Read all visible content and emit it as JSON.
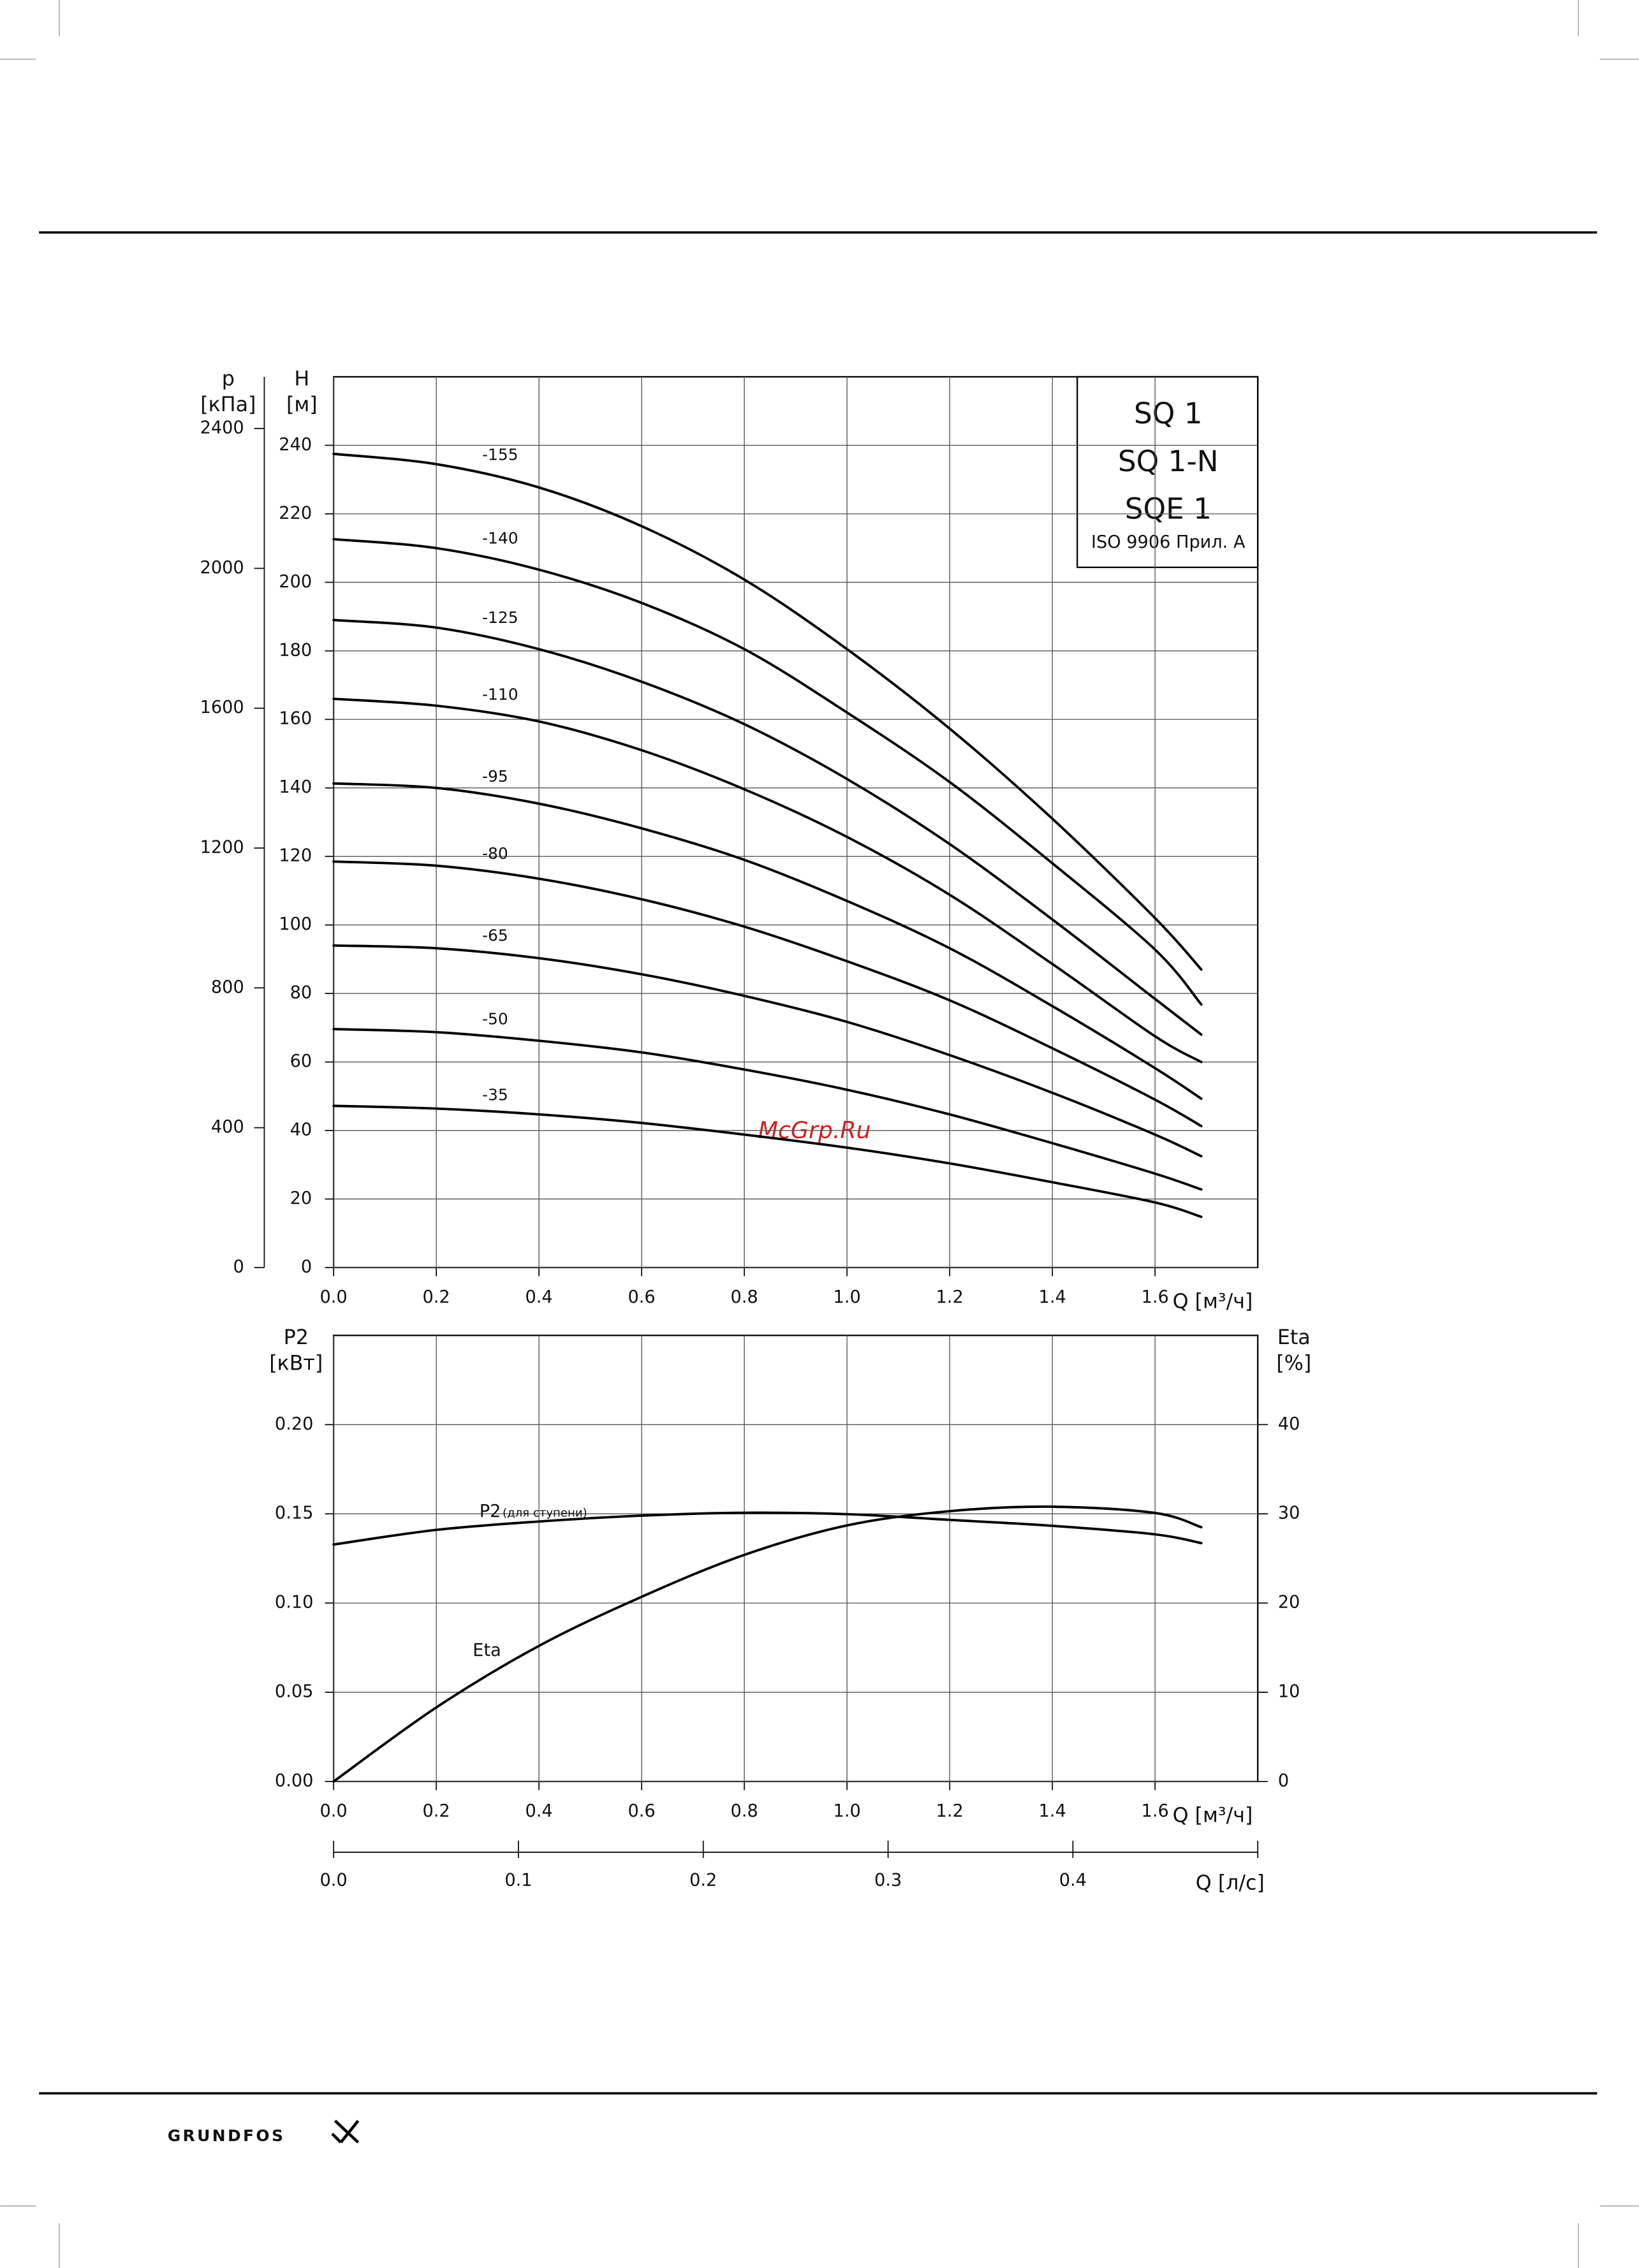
{
  "chart_data": [
    {
      "type": "line",
      "x_label": "Q [м³/ч]",
      "y_label": [
        "H",
        "[м]"
      ],
      "y2_label": [
        "p",
        "[кПа]"
      ],
      "x": [
        0,
        0.2,
        0.4,
        0.6,
        0.8,
        1.0,
        1.2,
        1.4,
        1.6,
        1.69
      ],
      "xlim": [
        0,
        1.8
      ],
      "xticks": [
        {
          "value": 0,
          "label": "0.0"
        },
        0.2,
        0.4,
        0.6,
        0.8,
        {
          "value": 1,
          "label": "1.0"
        },
        1.2,
        1.4,
        1.6
      ],
      "ylim": [
        0,
        260
      ],
      "yticks": [
        0,
        20,
        40,
        60,
        80,
        100,
        120,
        140,
        160,
        180,
        200,
        220,
        240
      ],
      "y2lim": [
        0,
        2548
      ],
      "y2ticks": [
        0,
        400,
        800,
        1200,
        1600,
        2000,
        2400
      ],
      "grid": true,
      "color": "#000000",
      "series": [
        {
          "name": "-155",
          "values": [
            237.5,
            234.5,
            227.7,
            216.4,
            200.8,
            180.5,
            157.3,
            131.0,
            102.0,
            87.0
          ]
        },
        {
          "name": "-140",
          "values": [
            212.6,
            210.0,
            203.7,
            194.0,
            180.5,
            162.0,
            141.7,
            118.0,
            92.8,
            76.8
          ]
        },
        {
          "name": "-125",
          "values": [
            189.0,
            186.8,
            180.5,
            171.0,
            158.6,
            142.6,
            123.6,
            101.6,
            78.4,
            68.0
          ]
        },
        {
          "name": "-110",
          "values": [
            166.0,
            164.0,
            159.4,
            151.0,
            139.6,
            125.7,
            108.8,
            88.6,
            67.5,
            60.0
          ]
        },
        {
          "name": "-95",
          "values": [
            141.3,
            140.0,
            135.4,
            128.2,
            119.0,
            107.0,
            93.2,
            76.3,
            58.2,
            49.3
          ]
        },
        {
          "name": "-80",
          "values": [
            118.5,
            117.3,
            113.5,
            107.5,
            99.5,
            89.4,
            78.0,
            64.0,
            49.0,
            41.3
          ]
        },
        {
          "name": "-65",
          "values": [
            94.0,
            93.2,
            90.3,
            85.6,
            79.3,
            71.7,
            62.0,
            51.0,
            38.8,
            32.5
          ]
        },
        {
          "name": "-50",
          "values": [
            69.6,
            68.7,
            66.2,
            62.8,
            57.8,
            51.9,
            44.7,
            36.3,
            27.4,
            22.8
          ]
        },
        {
          "name": "-35",
          "values": [
            47.2,
            46.4,
            44.7,
            42.2,
            38.8,
            35.0,
            30.4,
            24.9,
            19.0,
            14.8
          ]
        }
      ],
      "annotations": [
        "SQ 1",
        "SQ 1-N",
        "SQE 1",
        "ISO 9906 Прил.  A"
      ]
    },
    {
      "type": "line",
      "x_label": "Q [м³/ч]",
      "y_label": [
        "P2",
        "[кВт]"
      ],
      "y2_label": [
        "Eta",
        "[%]"
      ],
      "x": [
        0,
        0.2,
        0.4,
        0.6,
        0.8,
        1.0,
        1.2,
        1.4,
        1.6,
        1.69
      ],
      "xlim": [
        0,
        1.8
      ],
      "xticks": [
        {
          "value": 0,
          "label": "0.0"
        },
        0.2,
        0.4,
        0.6,
        0.8,
        {
          "value": 1,
          "label": "1.0"
        },
        1.2,
        1.4,
        1.6
      ],
      "ylim": [
        0,
        0.25
      ],
      "yticks": [
        {
          "value": 0,
          "label": "0.00"
        },
        0.05,
        {
          "value": 0.1,
          "label": "0.10"
        },
        0.15,
        {
          "value": 0.2,
          "label": "0.20"
        }
      ],
      "y2lim": [
        0,
        50
      ],
      "y2ticks": [
        0,
        10,
        20,
        30,
        40
      ],
      "grid": true,
      "color": "#000000",
      "series": [
        {
          "name": "P2",
          "note": "(для ступени)",
          "values": [
            0.1328,
            0.141,
            0.1457,
            0.149,
            0.1506,
            0.1498,
            0.1466,
            0.1433,
            0.1385,
            0.1336
          ]
        },
        {
          "name": "Eta",
          "axis": "y2",
          "values": [
            0,
            8.3,
            15.2,
            20.7,
            25.4,
            28.7,
            30.3,
            30.8,
            30.1,
            28.5
          ]
        }
      ],
      "x2_label": "Q [л/с]",
      "x2lim": [
        0,
        0.5
      ],
      "x2ticks": [
        {
          "value": 0,
          "label": "0.0"
        },
        0.1,
        0.2,
        0.3,
        0.4
      ]
    }
  ],
  "watermark": "McGrp.Ru",
  "footer": {
    "logo": "GRUNDFOS"
  }
}
